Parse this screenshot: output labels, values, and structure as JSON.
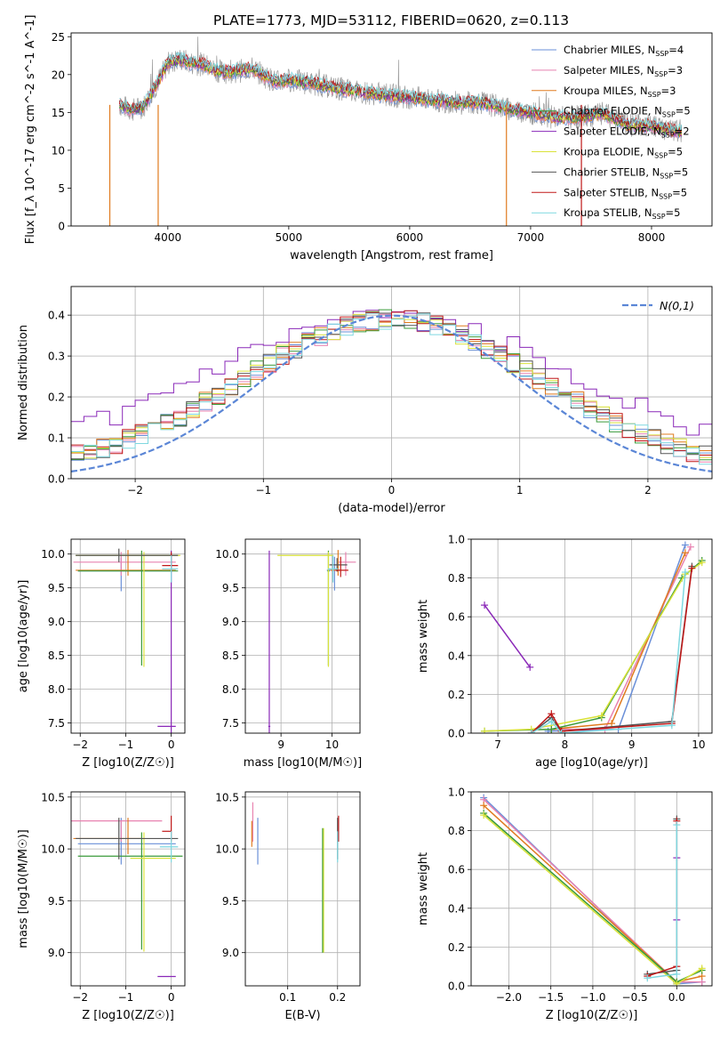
{
  "figure_title": "PLATE=1773, MJD=53112, FIBERID=0620, z=0.113",
  "series_colors": {
    "Chabrier MILES": "#6a8fd8",
    "Salpeter MILES": "#e882b0",
    "Kroupa MILES": "#e07b1f",
    "Chabrier ELODIE": "#3a9a3a",
    "Salpeter ELODIE": "#8a28b8",
    "Kroupa ELODIE": "#d9e23a",
    "Chabrier STELIB": "#555555",
    "Salpeter STELIB": "#c01818",
    "Kroupa STELIB": "#7fd8e0",
    "data": "#9a9a9a",
    "normal": "#5b86d6"
  },
  "chart_data": [
    {
      "id": "spectrum",
      "type": "line",
      "title": "",
      "xlabel": "wavelength [Angstrom, rest frame]",
      "ylabel": "Flux [f_λ 10^-17 erg cm^-2 s^-1 A^-1]",
      "xlim": [
        3200,
        8500
      ],
      "ylim": [
        0,
        25.5
      ],
      "xticks": [
        "4000",
        "5000",
        "6000",
        "7000",
        "8000"
      ],
      "yticks": [
        "0",
        "5",
        "10",
        "15",
        "20",
        "25"
      ],
      "legend_placement": "top-right",
      "legend": [
        {
          "name": "Chabrier MILES",
          "nssp": "4"
        },
        {
          "name": "Salpeter MILES",
          "nssp": "3"
        },
        {
          "name": "Kroupa MILES",
          "nssp": "3"
        },
        {
          "name": "Chabrier ELODIE",
          "nssp": "5"
        },
        {
          "name": "Salpeter ELODIE",
          "nssp": "2"
        },
        {
          "name": "Kroupa ELODIE",
          "nssp": "5"
        },
        {
          "name": "Chabrier STELIB",
          "nssp": "5"
        },
        {
          "name": "Salpeter STELIB",
          "nssp": "5"
        },
        {
          "name": "Kroupa STELIB",
          "nssp": "5"
        }
      ],
      "continuum": {
        "x": [
          3600,
          3700,
          3800,
          3900,
          4000,
          4100,
          4200,
          4300,
          4400,
          4500,
          4600,
          4700,
          4800,
          4900,
          5000,
          5200,
          5400,
          5600,
          5800,
          6000,
          6200,
          6400,
          6600,
          6800,
          7000,
          7200,
          7400,
          7600,
          7800,
          8000,
          8200
        ],
        "y": [
          16.0,
          15.3,
          15.8,
          18.5,
          21.5,
          22.0,
          21.5,
          21.3,
          20.5,
          20.3,
          20.5,
          20.8,
          19.8,
          19.0,
          19.3,
          18.8,
          18.2,
          17.7,
          17.3,
          17.0,
          16.6,
          16.3,
          16.3,
          15.5,
          15.0,
          14.3,
          14.4,
          14.8,
          13.4,
          13.2,
          12.5
        ]
      },
      "model_dropouts": [
        {
          "series": "Kroupa MILES",
          "x": 3520
        },
        {
          "series": "Kroupa MILES",
          "x": 3920
        },
        {
          "series": "Kroupa MILES",
          "x": 6800
        },
        {
          "series": "Salpeter STELIB",
          "x": 7420
        }
      ]
    },
    {
      "id": "residuals",
      "type": "line",
      "title": "",
      "xlabel": "(data-model)/error",
      "ylabel": "Normed distribution",
      "xlim": [
        -2.5,
        2.5
      ],
      "ylim": [
        0,
        0.47
      ],
      "xticks": [
        "−2",
        "−1",
        "0",
        "1",
        "2"
      ],
      "yticks": [
        "0.0",
        "0.1",
        "0.2",
        "0.3",
        "0.4"
      ],
      "legend_placement": "top-right",
      "legend": [
        {
          "name": "N(0,1)"
        }
      ],
      "gaussian": {
        "mean": 0,
        "sigma": 1
      },
      "histogram": {
        "bin_start": -2.5,
        "bin_width": 0.1,
        "n_bins": 50
      }
    },
    {
      "id": "age_vs_z",
      "type": "scatter",
      "title": "",
      "xlabel": "Z [log10(Z/Z☉)]",
      "ylabel": "age [log10(age/yr)]",
      "xlim": [
        -2.2,
        0.3
      ],
      "ylim": [
        7.35,
        10.22
      ],
      "xticks": [
        "−2",
        "−1",
        "0"
      ],
      "yticks": [
        "7.5",
        "8.0",
        "8.5",
        "9.0",
        "9.5",
        "10.0"
      ],
      "points": [
        {
          "series": "Chabrier MILES",
          "x": -1.1,
          "y": 9.75,
          "xerr": [
            0.95,
            1.1
          ],
          "yerr": [
            0.3,
            0.2
          ]
        },
        {
          "series": "Salpeter MILES",
          "x": -1.1,
          "y": 9.88,
          "xerr": [
            1.05,
            1.2
          ],
          "yerr": [
            0.2,
            0.15
          ]
        },
        {
          "series": "Kroupa MILES",
          "x": -0.95,
          "y": 9.76,
          "xerr": [
            1.15,
            1.05
          ],
          "yerr": [
            0.08,
            0.3
          ]
        },
        {
          "series": "Chabrier ELODIE",
          "x": -0.65,
          "y": 9.75,
          "xerr": [
            1.4,
            0.8
          ],
          "yerr": [
            1.4,
            0.3
          ]
        },
        {
          "series": "Salpeter ELODIE",
          "x": 0.0,
          "y": 7.45,
          "xerr": [
            0.3,
            0.1
          ],
          "yerr": [
            0.1,
            2.6
          ]
        },
        {
          "series": "Kroupa ELODIE",
          "x": -0.6,
          "y": 9.98,
          "xerr": [
            1.5,
            0.8
          ],
          "yerr": [
            1.65,
            0.05
          ]
        },
        {
          "series": "Chabrier STELIB",
          "x": -1.15,
          "y": 9.98,
          "xerr": [
            0.95,
            1.3
          ],
          "yerr": [
            0.1,
            0.1
          ]
        },
        {
          "series": "Salpeter STELIB",
          "x": 0.0,
          "y": 9.83,
          "xerr": [
            0.2,
            0.15
          ],
          "yerr": [
            0.1,
            0.2
          ]
        },
        {
          "series": "Kroupa STELIB",
          "x": 0.0,
          "y": 9.78,
          "xerr": [
            0.2,
            0.15
          ],
          "yerr": [
            0.2,
            0.2
          ]
        }
      ]
    },
    {
      "id": "age_vs_mass",
      "type": "scatter",
      "title": "",
      "xlabel": "mass [log10(M/M☉)]",
      "ylabel": "",
      "xlim": [
        8.3,
        10.55
      ],
      "ylim": [
        7.35,
        10.22
      ],
      "xticks": [
        "9",
        "10"
      ],
      "yticks": [
        "7.5",
        "8.0",
        "8.5",
        "9.0",
        "9.5",
        "10.0"
      ],
      "points": [
        {
          "series": "Chabrier MILES",
          "x": 10.05,
          "y": 9.76,
          "xerr": [
            0.15,
            0.1
          ],
          "yerr": [
            0.3,
            0.2
          ]
        },
        {
          "series": "Salpeter MILES",
          "x": 10.27,
          "y": 9.88,
          "xerr": [
            0.15,
            0.2
          ],
          "yerr": [
            0.2,
            0.15
          ]
        },
        {
          "series": "Kroupa MILES",
          "x": 10.12,
          "y": 9.76,
          "xerr": [
            0.15,
            0.2
          ],
          "yerr": [
            0.08,
            0.3
          ]
        },
        {
          "series": "Chabrier ELODIE",
          "x": 9.93,
          "y": 9.75,
          "xerr": [
            0.02,
            0.02
          ],
          "yerr": [
            1.4,
            0.3
          ]
        },
        {
          "series": "Salpeter ELODIE",
          "x": 8.77,
          "y": 7.45,
          "xerr": [
            0.02,
            0.02
          ],
          "yerr": [
            0.1,
            2.6
          ]
        },
        {
          "series": "Kroupa ELODIE",
          "x": 9.93,
          "y": 9.98,
          "xerr": [
            1.0,
            0.1
          ],
          "yerr": [
            1.65,
            0.05
          ]
        },
        {
          "series": "Chabrier STELIB",
          "x": 10.1,
          "y": 9.84,
          "xerr": [
            0.15,
            0.2
          ],
          "yerr": [
            0.1,
            0.1
          ]
        },
        {
          "series": "Salpeter STELIB",
          "x": 10.17,
          "y": 9.76,
          "xerr": [
            0.1,
            0.15
          ],
          "yerr": [
            0.1,
            0.2
          ]
        },
        {
          "series": "Kroupa STELIB",
          "x": 10.02,
          "y": 9.78,
          "xerr": [
            0.1,
            0.1
          ],
          "yerr": [
            0.2,
            0.2
          ]
        }
      ]
    },
    {
      "id": "weight_vs_age",
      "type": "line",
      "title": "",
      "xlabel": "age [log10(age/yr)]",
      "ylabel": "mass weight",
      "xlim": [
        6.6,
        10.2
      ],
      "ylim": [
        0,
        1
      ],
      "xticks": [
        "7",
        "8",
        "9",
        "10"
      ],
      "yticks": [
        "0.0",
        "0.2",
        "0.4",
        "0.6",
        "0.8",
        "1.0"
      ],
      "series": [
        {
          "name": "Chabrier MILES",
          "x": [
            7.75,
            8.8,
            9.8
          ],
          "y": [
            0.01,
            0.02,
            0.97
          ]
        },
        {
          "name": "Salpeter MILES",
          "x": [
            7.8,
            8.6,
            9.88
          ],
          "y": [
            0.02,
            0.02,
            0.96
          ]
        },
        {
          "name": "Kroupa MILES",
          "x": [
            7.8,
            8.7,
            9.8
          ],
          "y": [
            0.02,
            0.05,
            0.93
          ]
        },
        {
          "name": "Chabrier ELODIE",
          "x": [
            6.8,
            7.8,
            8.55,
            9.75,
            10.05
          ],
          "y": [
            0.01,
            0.02,
            0.08,
            0.8,
            0.89
          ]
        },
        {
          "name": "Salpeter ELODIE",
          "x": [
            6.8,
            7.48
          ],
          "y": [
            0.66,
            0.34
          ]
        },
        {
          "name": "Kroupa ELODIE",
          "x": [
            6.8,
            7.5,
            8.55,
            9.8,
            10.05
          ],
          "y": [
            0.01,
            0.02,
            0.09,
            0.82,
            0.88
          ]
        },
        {
          "name": "Chabrier STELIB",
          "x": [
            7.5,
            7.8,
            7.95,
            9.6,
            9.9
          ],
          "y": [
            0.0,
            0.08,
            0.01,
            0.06,
            0.86
          ]
        },
        {
          "name": "Salpeter STELIB",
          "x": [
            7.5,
            7.8,
            7.95,
            9.6,
            9.9
          ],
          "y": [
            0.0,
            0.1,
            0.01,
            0.05,
            0.85
          ]
        },
        {
          "name": "Kroupa STELIB",
          "x": [
            7.5,
            7.8,
            7.95,
            9.6,
            9.8
          ],
          "y": [
            0.0,
            0.06,
            0.0,
            0.04,
            0.83
          ]
        }
      ]
    },
    {
      "id": "mass_vs_z",
      "type": "scatter",
      "title": "",
      "xlabel": "Z [log10(Z/Z☉)]",
      "ylabel": "mass [log10(M/M☉)]",
      "xlim": [
        -2.2,
        0.3
      ],
      "ylim": [
        8.68,
        10.55
      ],
      "xticks": [
        "−2",
        "−1",
        "0"
      ],
      "yticks": [
        "9.0",
        "9.5",
        "10.0",
        "10.5"
      ],
      "points": [
        {
          "series": "Chabrier MILES",
          "x": -1.1,
          "y": 10.05,
          "xerr": [
            0.95,
            1.2
          ],
          "yerr": [
            0.2,
            0.25
          ]
        },
        {
          "series": "Salpeter MILES",
          "x": -1.1,
          "y": 10.27,
          "xerr": [
            1.1,
            0.9
          ],
          "yerr": [
            0.2,
            0.0
          ]
        },
        {
          "series": "Kroupa MILES",
          "x": -0.95,
          "y": 10.1,
          "xerr": [
            1.2,
            0.3
          ],
          "yerr": [
            0.15,
            0.2
          ]
        },
        {
          "series": "Chabrier ELODIE",
          "x": -0.65,
          "y": 9.93,
          "xerr": [
            1.4,
            0.9
          ],
          "yerr": [
            0.9,
            0.23
          ]
        },
        {
          "series": "Salpeter ELODIE",
          "x": 0.0,
          "y": 8.77,
          "xerr": [
            0.3,
            0.1
          ],
          "yerr": [
            0.0,
            0.0
          ]
        },
        {
          "series": "Kroupa ELODIE",
          "x": -0.6,
          "y": 9.91,
          "xerr": [
            0.3,
            0.7
          ],
          "yerr": [
            0.9,
            0.25
          ]
        },
        {
          "series": "Chabrier STELIB",
          "x": -1.15,
          "y": 10.1,
          "xerr": [
            0.95,
            1.3
          ],
          "yerr": [
            0.2,
            0.2
          ]
        },
        {
          "series": "Salpeter STELIB",
          "x": 0.0,
          "y": 10.17,
          "xerr": [
            0.2,
            0.0
          ],
          "yerr": [
            0.1,
            0.15
          ]
        },
        {
          "series": "Kroupa STELIB",
          "x": 0.0,
          "y": 10.02,
          "xerr": [
            0.25,
            0.15
          ],
          "yerr": [
            0.15,
            0.15
          ]
        }
      ]
    },
    {
      "id": "mass_vs_ebv",
      "type": "scatter",
      "title": "",
      "xlabel": "E(B-V)",
      "ylabel": "",
      "xlim": [
        0.015,
        0.245
      ],
      "ylim": [
        8.68,
        10.55
      ],
      "xticks": [
        "0.1",
        "0.2"
      ],
      "yticks": [
        "9.0",
        "9.5",
        "10.0",
        "10.5"
      ],
      "points": [
        {
          "series": "Chabrier MILES",
          "x": 0.04,
          "y": 10.05,
          "xerr": [
            0,
            0
          ],
          "yerr": [
            0.2,
            0.25
          ]
        },
        {
          "series": "Salpeter MILES",
          "x": 0.03,
          "y": 10.27,
          "xerr": [
            0,
            0
          ],
          "yerr": [
            0.2,
            0.18
          ]
        },
        {
          "series": "Kroupa MILES",
          "x": 0.028,
          "y": 10.12,
          "xerr": [
            0,
            0
          ],
          "yerr": [
            0.1,
            0.15
          ]
        },
        {
          "series": "Chabrier ELODIE",
          "x": 0.17,
          "y": 9.95,
          "xerr": [
            0,
            0
          ],
          "yerr": [
            0.95,
            0.25
          ]
        },
        {
          "series": "Kroupa ELODIE",
          "x": 0.172,
          "y": 9.9,
          "xerr": [
            0,
            0
          ],
          "yerr": [
            0.9,
            0.3
          ]
        },
        {
          "series": "Chabrier STELIB",
          "x": 0.2,
          "y": 10.1,
          "xerr": [
            0,
            0
          ],
          "yerr": [
            0.2,
            0.2
          ]
        },
        {
          "series": "Salpeter STELIB",
          "x": 0.202,
          "y": 10.17,
          "xerr": [
            0,
            0
          ],
          "yerr": [
            0.1,
            0.15
          ]
        },
        {
          "series": "Kroupa STELIB",
          "x": 0.2,
          "y": 10.02,
          "xerr": [
            0,
            0
          ],
          "yerr": [
            0.15,
            0.15
          ]
        }
      ]
    },
    {
      "id": "weight_vs_z",
      "type": "line",
      "title": "",
      "xlabel": "Z [log10(Z/Z☉)]",
      "ylabel": "mass weight",
      "xlim": [
        -2.45,
        0.42
      ],
      "ylim": [
        0,
        1
      ],
      "xticks": [
        "−2.0",
        "−1.5",
        "−1.0",
        "−0.5",
        "0.0"
      ],
      "yticks": [
        "0.0",
        "0.2",
        "0.4",
        "0.6",
        "0.8",
        "1.0"
      ],
      "series": [
        {
          "name": "Chabrier MILES",
          "x": [
            -2.3,
            0.0,
            0.3
          ],
          "y": [
            0.97,
            0.01,
            0.02
          ]
        },
        {
          "name": "Salpeter MILES",
          "x": [
            -2.3,
            0.0,
            0.3
          ],
          "y": [
            0.96,
            0.02,
            0.02
          ]
        },
        {
          "name": "Kroupa MILES",
          "x": [
            -2.3,
            0.0,
            0.3
          ],
          "y": [
            0.93,
            0.02,
            0.05
          ]
        },
        {
          "name": "Chabrier ELODIE",
          "x": [
            -2.3,
            0.0,
            0.3
          ],
          "y": [
            0.89,
            0.02,
            0.08
          ]
        },
        {
          "name": "Salpeter ELODIE",
          "x": [
            0.0,
            0.0
          ],
          "y": [
            0.66,
            0.34
          ]
        },
        {
          "name": "Kroupa ELODIE",
          "x": [
            -2.3,
            0.0,
            0.3
          ],
          "y": [
            0.88,
            0.01,
            0.09
          ]
        },
        {
          "name": "Chabrier STELIB",
          "x": [
            -0.35,
            0.0,
            0.0
          ],
          "y": [
            0.06,
            0.08,
            0.86
          ]
        },
        {
          "name": "Salpeter STELIB",
          "x": [
            -0.35,
            0.0,
            0.0
          ],
          "y": [
            0.05,
            0.1,
            0.85
          ]
        },
        {
          "name": "Kroupa STELIB",
          "x": [
            -0.35,
            0.0,
            0.0
          ],
          "y": [
            0.04,
            0.06,
            0.83
          ]
        }
      ]
    }
  ]
}
